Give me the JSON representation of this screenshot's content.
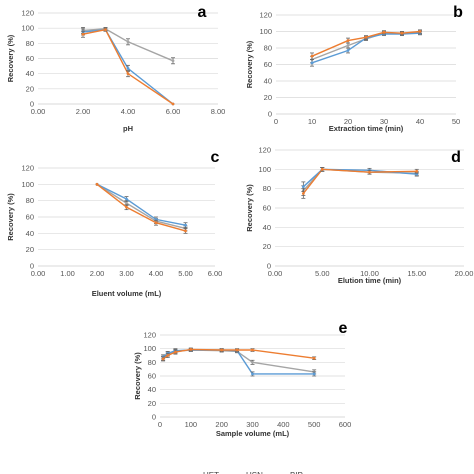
{
  "colors": {
    "HET": "#5b9bd5",
    "HSN": "#ed7d31",
    "BIP": "#a5a5a5",
    "axis": "#d9d9d9",
    "grid": "#d9d9d9"
  },
  "legend": [
    "HET",
    "HSN",
    "BIP"
  ],
  "chart_data": [
    {
      "type": "line",
      "panel_label": "a",
      "xlabel": "pH",
      "ylabel": "Recovery (%)",
      "xlim": [
        0,
        8
      ],
      "ylim": [
        0,
        120
      ],
      "x_ticks": [
        "0.00",
        "2.00",
        "4.00",
        "6.00",
        "8.00"
      ],
      "y_ticks": [
        "0",
        "20",
        "40",
        "60",
        "80",
        "100",
        "120"
      ],
      "grid": "horizontal",
      "series": [
        {
          "name": "HET",
          "x": [
            2,
            3,
            4,
            6
          ],
          "y": [
            95,
            98,
            47,
            0
          ],
          "err": [
            4,
            2,
            4,
            0
          ]
        },
        {
          "name": "HSN",
          "x": [
            2,
            3,
            4,
            6
          ],
          "y": [
            92,
            98,
            40,
            0
          ],
          "err": [
            4,
            2,
            4,
            0
          ]
        },
        {
          "name": "BIP",
          "x": [
            2,
            3,
            4,
            6
          ],
          "y": [
            97,
            99,
            82,
            57
          ],
          "err": [
            4,
            2,
            4,
            4
          ]
        }
      ]
    },
    {
      "type": "line",
      "panel_label": "b",
      "xlabel": "Extraction time (min)",
      "ylabel": "Recovery (%)",
      "xlim": [
        0,
        50
      ],
      "ylim": [
        0,
        120
      ],
      "x_ticks": [
        "0",
        "10",
        "20",
        "30",
        "40",
        "50"
      ],
      "y_ticks": [
        "0",
        "20",
        "40",
        "60",
        "80",
        "100",
        "120"
      ],
      "grid": "horizontal",
      "series": [
        {
          "name": "HET",
          "x": [
            10,
            20,
            25,
            30,
            35,
            40
          ],
          "y": [
            62,
            77,
            92,
            97,
            97,
            98
          ],
          "err": [
            4,
            3,
            2,
            2,
            2,
            2
          ]
        },
        {
          "name": "HSN",
          "x": [
            10,
            20,
            25,
            30,
            35,
            40
          ],
          "y": [
            70,
            89,
            93,
            99,
            98,
            100
          ],
          "err": [
            4,
            3,
            2,
            2,
            2,
            2
          ]
        },
        {
          "name": "BIP",
          "x": [
            10,
            20,
            25,
            30,
            35,
            40
          ],
          "y": [
            66,
            83,
            91,
            98,
            98,
            99
          ],
          "err": [
            4,
            3,
            2,
            2,
            2,
            2
          ]
        }
      ]
    },
    {
      "type": "line",
      "panel_label": "c",
      "xlabel": "Eluent volume (mL)",
      "ylabel": "Recovery (%)",
      "xlim": [
        0,
        6
      ],
      "ylim": [
        0,
        120
      ],
      "x_ticks": [
        "0.00",
        "1.00",
        "2.00",
        "3.00",
        "4.00",
        "5.00",
        "6.00"
      ],
      "y_ticks": [
        "0",
        "20",
        "40",
        "60",
        "80",
        "100",
        "120"
      ],
      "grid": "horizontal",
      "series": [
        {
          "name": "HET",
          "x": [
            2,
            3,
            4,
            5
          ],
          "y": [
            100,
            82,
            57,
            50
          ],
          "err": [
            0,
            3,
            3,
            3
          ]
        },
        {
          "name": "HSN",
          "x": [
            2,
            3,
            4,
            5
          ],
          "y": [
            100,
            72,
            53,
            43
          ],
          "err": [
            0,
            3,
            3,
            3
          ]
        },
        {
          "name": "BIP",
          "x": [
            2,
            3,
            4,
            5
          ],
          "y": [
            100,
            77,
            55,
            46
          ],
          "err": [
            0,
            3,
            3,
            3
          ]
        }
      ]
    },
    {
      "type": "line",
      "panel_label": "d",
      "xlabel": "Elution time (min)",
      "ylabel": "Recovery (%)",
      "xlim": [
        0,
        20
      ],
      "ylim": [
        0,
        120
      ],
      "x_ticks": [
        "0.00",
        "5.00",
        "10.00",
        "15.00",
        "20.00"
      ],
      "y_ticks": [
        "0",
        "20",
        "40",
        "60",
        "80",
        "100",
        "120"
      ],
      "grid": "horizontal",
      "series": [
        {
          "name": "HET",
          "x": [
            3,
            5,
            10,
            15
          ],
          "y": [
            82,
            100,
            99,
            95
          ],
          "err": [
            5,
            2,
            2,
            2
          ]
        },
        {
          "name": "HSN",
          "x": [
            3,
            5,
            10,
            15
          ],
          "y": [
            75,
            100,
            97,
            98
          ],
          "err": [
            5,
            2,
            2,
            2
          ]
        },
        {
          "name": "BIP",
          "x": [
            3,
            5,
            10,
            15
          ],
          "y": [
            78,
            100,
            97,
            96
          ],
          "err": [
            5,
            2,
            2,
            2
          ]
        }
      ]
    },
    {
      "type": "line",
      "panel_label": "e",
      "xlabel": "Sample volume (mL)",
      "ylabel": "Recovery (%)",
      "xlim": [
        0,
        600
      ],
      "ylim": [
        0,
        120
      ],
      "x_ticks": [
        "0",
        "100",
        "200",
        "300",
        "400",
        "500",
        "600"
      ],
      "y_ticks": [
        "0",
        "20",
        "40",
        "60",
        "80",
        "100",
        "120"
      ],
      "grid": "horizontal",
      "series": [
        {
          "name": "HET",
          "x": [
            10,
            25,
            50,
            100,
            200,
            250,
            300,
            500
          ],
          "y": [
            88,
            93,
            97,
            98,
            98,
            97,
            63,
            63
          ],
          "err": [
            3,
            3,
            3,
            2,
            2,
            2,
            3,
            3
          ]
        },
        {
          "name": "HSN",
          "x": [
            10,
            25,
            50,
            100,
            200,
            250,
            300,
            500
          ],
          "y": [
            85,
            90,
            95,
            99,
            98,
            98,
            98,
            86
          ],
          "err": [
            3,
            3,
            3,
            2,
            2,
            2,
            2,
            2
          ]
        },
        {
          "name": "BIP",
          "x": [
            10,
            25,
            50,
            100,
            200,
            250,
            300,
            500
          ],
          "y": [
            86,
            92,
            96,
            98,
            97,
            96,
            80,
            66
          ],
          "err": [
            3,
            3,
            3,
            2,
            2,
            2,
            3,
            3
          ]
        }
      ]
    }
  ]
}
